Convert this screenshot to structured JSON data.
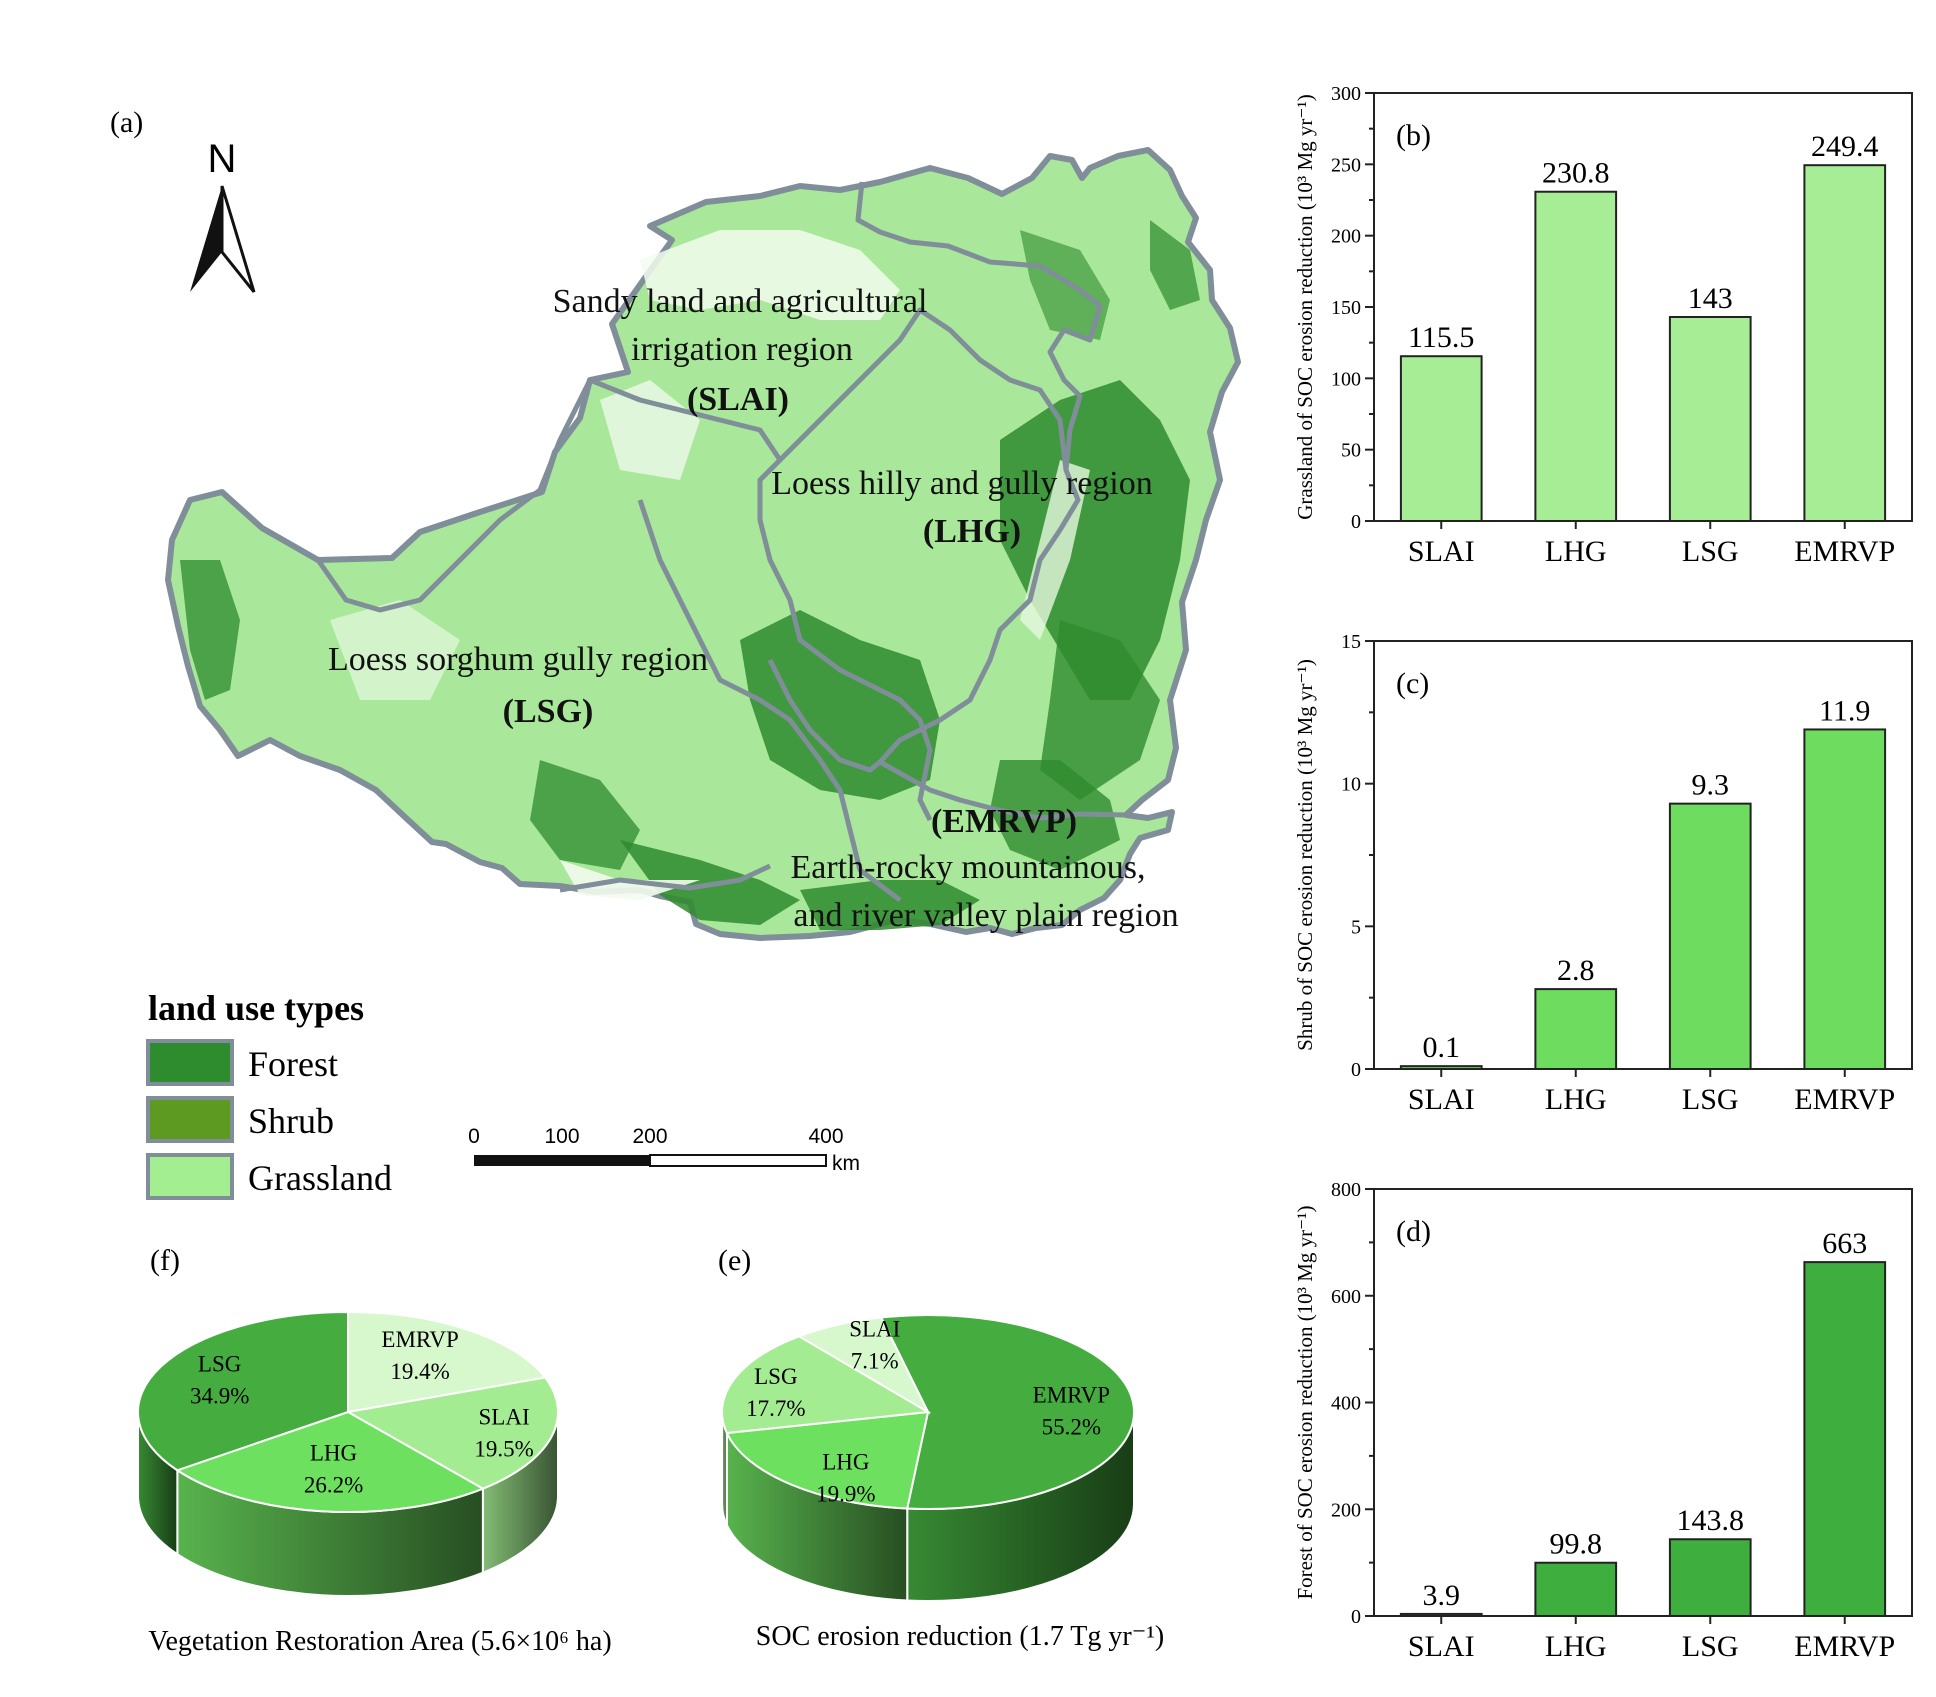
{
  "panels": {
    "a": "(a)",
    "b": "(b)",
    "c": "(c)",
    "d": "(d)",
    "e": "(e)",
    "f": "(f)"
  },
  "map": {
    "north": "N",
    "regions": {
      "slai": {
        "line1": "Sandy land and agricultural",
        "line2": "irrigation region",
        "abbr": "(SLAI)"
      },
      "lhg": {
        "line1": "Loess hilly and gully region",
        "abbr": "(LHG)"
      },
      "lsg": {
        "line1": "Loess sorghum gully region",
        "abbr": "(LSG)"
      },
      "emrvp": {
        "abbr": "(EMRVP)",
        "line1": "Earth-rocky mountainous,",
        "line2": "and river valley plain region"
      }
    },
    "legend": {
      "title": "land use types",
      "items": [
        {
          "label": "Forest",
          "color": "#2e8b2e"
        },
        {
          "label": "Shrub",
          "color": "#5c9a22"
        },
        {
          "label": "Grassland",
          "color": "#a4ee92"
        }
      ]
    },
    "scalebar": {
      "ticks": [
        "0",
        "100",
        "200",
        "400"
      ],
      "unit": "km"
    }
  },
  "chart_data": [
    {
      "id": "b",
      "type": "bar",
      "categories": [
        "SLAI",
        "LHG",
        "LSG",
        "EMRVP"
      ],
      "values": [
        115.5,
        230.8,
        143,
        249.4
      ],
      "labels": [
        "115.5",
        "230.8",
        "143",
        "249.4"
      ],
      "ylim": [
        0,
        300
      ],
      "yticks": [
        0,
        50,
        100,
        150,
        200,
        250,
        300
      ],
      "ylabel": "Grassland of SOC erosion reduction (10³ Mg yr⁻¹)",
      "color": "#a6ed95"
    },
    {
      "id": "c",
      "type": "bar",
      "categories": [
        "SLAI",
        "LHG",
        "LSG",
        "EMRVP"
      ],
      "values": [
        0.1,
        2.8,
        9.3,
        11.9
      ],
      "labels": [
        "0.1",
        "2.8",
        "9.3",
        "11.9"
      ],
      "ylim": [
        0,
        15
      ],
      "yticks": [
        0,
        5,
        10,
        15
      ],
      "ylabel": "Shrub of SOC erosion reduction (10³ Mg yr⁻¹)",
      "color": "#6ddc5f"
    },
    {
      "id": "d",
      "type": "bar",
      "categories": [
        "SLAI",
        "LHG",
        "LSG",
        "EMRVP"
      ],
      "values": [
        3.9,
        99.8,
        143.8,
        663
      ],
      "labels": [
        "3.9",
        "99.8",
        "143.8",
        "663"
      ],
      "ylim": [
        0,
        800
      ],
      "yticks": [
        0,
        200,
        400,
        600,
        800
      ],
      "ylabel": "Forest of SOC erosion reduction (10³ Mg yr⁻¹)",
      "color": "#3eae3e"
    },
    {
      "id": "f",
      "type": "pie",
      "title": "Vegetation Restoration Area (5.6×10⁶ ha)",
      "slices": [
        {
          "name": "EMRVP",
          "value": 19.4,
          "label": "19.4%",
          "color": "#d6f8cc"
        },
        {
          "name": "SLAI",
          "value": 19.5,
          "label": "19.5%",
          "color": "#a4ec92"
        },
        {
          "name": "LHG",
          "value": 26.2,
          "label": "26.2%",
          "color": "#6ee060"
        },
        {
          "name": "LSG",
          "value": 34.9,
          "label": "34.9%",
          "color": "#45ad40"
        }
      ]
    },
    {
      "id": "e",
      "type": "pie",
      "title": "SOC erosion reduction (1.7 Tg yr⁻¹)",
      "slices": [
        {
          "name": "EMRVP",
          "value": 55.2,
          "label": "55.2%",
          "color": "#45ad40"
        },
        {
          "name": "LHG",
          "value": 19.9,
          "label": "19.9%",
          "color": "#6ee060"
        },
        {
          "name": "LSG",
          "value": 17.7,
          "label": "17.7%",
          "color": "#a4ec92"
        },
        {
          "name": "SLAI",
          "value": 7.1,
          "label": "7.1%",
          "color": "#d6f8cc"
        }
      ]
    }
  ]
}
